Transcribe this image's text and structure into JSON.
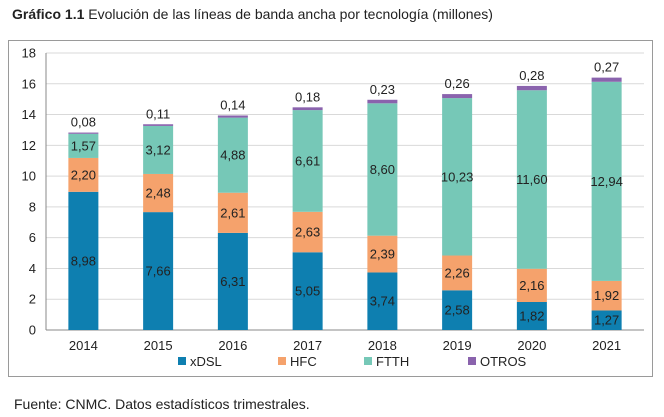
{
  "header": {
    "title_bold": "Gráfico 1.1",
    "title_rest": "Evolución de las líneas de banda ancha por tecnología (millones)"
  },
  "footer": {
    "source": "Fuente: CNMC. Datos estadísticos trimestrales."
  },
  "chart_data": {
    "type": "bar",
    "stacked": true,
    "title": "",
    "xlabel": "",
    "ylabel": "",
    "ylim": [
      0,
      18
    ],
    "yticks": [
      0,
      2,
      4,
      6,
      8,
      10,
      12,
      14,
      16,
      18
    ],
    "grid": true,
    "legend_position": "bottom",
    "categories": [
      "2014",
      "2015",
      "2016",
      "2017",
      "2018",
      "2019",
      "2020",
      "2021"
    ],
    "series": [
      {
        "name": "xDSL",
        "color": "#0e7fb0",
        "values": [
          8.98,
          7.66,
          6.31,
          5.05,
          3.74,
          2.58,
          1.82,
          1.27
        ],
        "labels": [
          "8,98",
          "7,66",
          "6,31",
          "5,05",
          "3,74",
          "2,58",
          "1,82",
          "1,27"
        ]
      },
      {
        "name": "HFC",
        "color": "#f5a26c",
        "values": [
          2.2,
          2.48,
          2.61,
          2.63,
          2.39,
          2.26,
          2.16,
          1.92
        ],
        "labels": [
          "2,20",
          "2,48",
          "2,61",
          "2,63",
          "2,39",
          "2,26",
          "2,16",
          "1,92"
        ]
      },
      {
        "name": "FTTH",
        "color": "#76c8b7",
        "values": [
          1.57,
          3.12,
          4.88,
          6.61,
          8.6,
          10.23,
          11.6,
          12.94
        ],
        "labels": [
          "1,57",
          "3,12",
          "4,88",
          "6,61",
          "8,60",
          "10,23",
          "11,60",
          "12,94"
        ]
      },
      {
        "name": "OTROS",
        "color": "#8a63ad",
        "values": [
          0.08,
          0.11,
          0.14,
          0.18,
          0.23,
          0.26,
          0.28,
          0.27
        ],
        "labels": [
          "0,08",
          "0,11",
          "0,14",
          "0,18",
          "0,23",
          "0,26",
          "0,28",
          "0,27"
        ]
      }
    ]
  }
}
